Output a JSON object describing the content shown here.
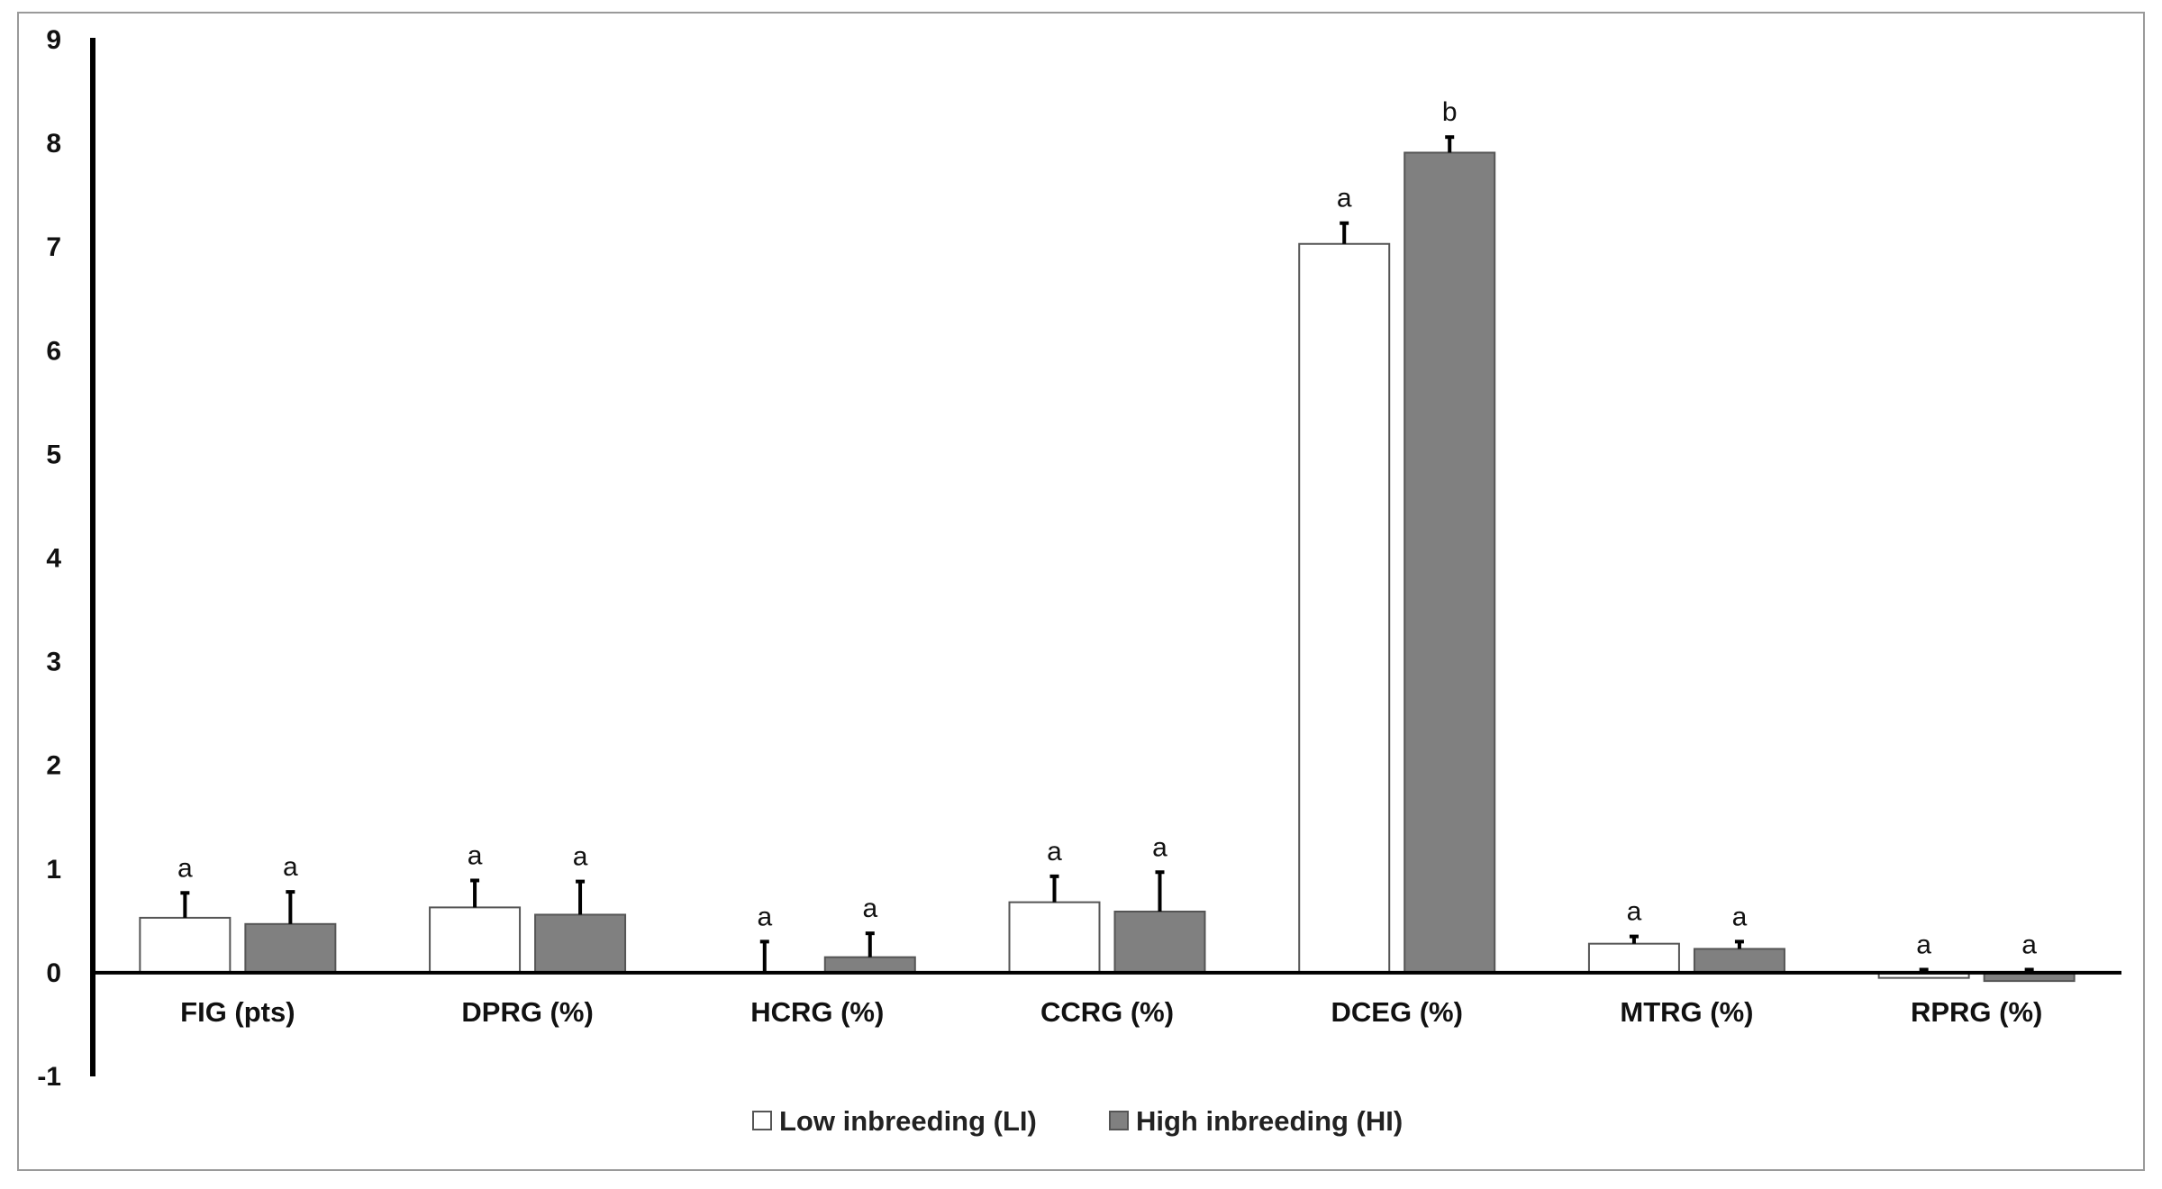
{
  "chart_data": {
    "type": "bar",
    "title": "",
    "xlabel": "",
    "ylabel": "",
    "ylim": [
      -1,
      9
    ],
    "yticks": [
      -1,
      0,
      1,
      2,
      3,
      4,
      5,
      6,
      7,
      8,
      9
    ],
    "grid": false,
    "legend_position": "bottom",
    "categories": [
      "FIG (pts)",
      "DPRG (%)",
      "HCRG (%)",
      "CCRG (%)",
      "DCEG (%)",
      "MTRG (%)",
      "RPRG (%)"
    ],
    "series": [
      {
        "name": "Low inbreeding (LI)",
        "color": "#ffffff",
        "values": [
          0.53,
          0.63,
          0.0,
          0.68,
          7.03,
          0.28,
          -0.05
        ],
        "error": [
          0.24,
          0.26,
          0.3,
          0.25,
          0.2,
          0.07,
          0.03
        ],
        "letters": [
          "a",
          "a",
          "a",
          "a",
          "a",
          "a",
          "a"
        ]
      },
      {
        "name": "High inbreeding (HI)",
        "color": "#808080",
        "values": [
          0.47,
          0.56,
          0.15,
          0.59,
          7.91,
          0.23,
          -0.08
        ],
        "error": [
          0.31,
          0.32,
          0.23,
          0.38,
          0.15,
          0.07,
          0.03
        ],
        "letters": [
          "a",
          "a",
          "a",
          "a",
          "b",
          "a",
          "a"
        ]
      }
    ]
  }
}
